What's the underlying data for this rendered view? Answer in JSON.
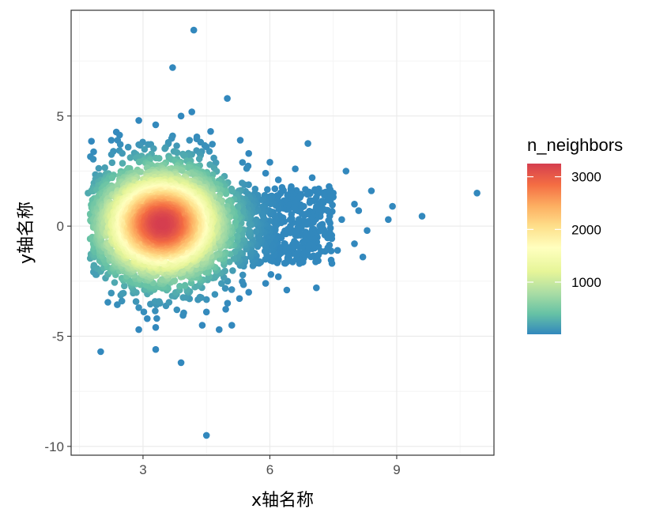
{
  "chart_data": {
    "type": "scatter",
    "title": "",
    "xlabel": "x轴名称",
    "ylabel": "y轴名称",
    "xlim": [
      1.3,
      11.3
    ],
    "ylim": [
      -10.4,
      9.8
    ],
    "x_ticks": [
      3,
      6,
      9
    ],
    "y_ticks": [
      5,
      0,
      -5,
      -10
    ],
    "x_tick_labels": [
      "3",
      "6",
      "9"
    ],
    "y_tick_labels": [
      "5",
      "0",
      "-5",
      "-10"
    ],
    "grid": true,
    "theme": "bw",
    "color_variable": "n_neighbors",
    "legend": {
      "title": "n_neighbors",
      "position": "right",
      "breaks": [
        3000,
        2000,
        1000
      ],
      "labels": [
        "3000",
        "2000",
        "1000"
      ],
      "range": [
        10,
        3250
      ],
      "palette": [
        "#3288bd",
        "#66c2a5",
        "#abdda4",
        "#e6f598",
        "#ffffbf",
        "#fee08b",
        "#fdae61",
        "#f46d43",
        "#d53e4f"
      ]
    },
    "point_color_stops": [
      {
        "value": 10,
        "color": "#3288bd"
      },
      {
        "value": 400,
        "color": "#66c2a5"
      },
      {
        "value": 800,
        "color": "#abdda4"
      },
      {
        "value": 1200,
        "color": "#e6f598"
      },
      {
        "value": 1650,
        "color": "#ffffbf"
      },
      {
        "value": 2050,
        "color": "#fee08b"
      },
      {
        "value": 2450,
        "color": "#fdae61"
      },
      {
        "value": 2850,
        "color": "#f46d43"
      },
      {
        "value": 3250,
        "color": "#d53e4f"
      }
    ],
    "core_cluster": {
      "center": [
        3.45,
        0.1
      ],
      "peak_density": 3250,
      "spread_x": 0.85,
      "spread_y": 1.4
    },
    "points": [
      [
        4.2,
        8.9
      ],
      [
        3.7,
        7.2
      ],
      [
        3.9,
        5.0
      ],
      [
        2.9,
        4.8
      ],
      [
        3.3,
        4.6
      ],
      [
        4.6,
        4.3
      ],
      [
        3.7,
        4.1
      ],
      [
        2.4,
        3.9
      ],
      [
        3.6,
        3.8
      ],
      [
        4.1,
        3.9
      ],
      [
        2.9,
        3.7
      ],
      [
        4.5,
        3.6
      ],
      [
        5.3,
        3.9
      ],
      [
        6.9,
        3.75
      ],
      [
        5.5,
        3.3
      ],
      [
        2.3,
        3.4
      ],
      [
        6.0,
        2.9
      ],
      [
        6.6,
        2.6
      ],
      [
        7.8,
        2.5
      ],
      [
        7.0,
        2.2
      ],
      [
        6.2,
        2.1
      ],
      [
        7.4,
        1.8
      ],
      [
        8.4,
        1.6
      ],
      [
        7.5,
        1.5
      ],
      [
        6.5,
        1.6
      ],
      [
        7.1,
        1.3
      ],
      [
        8.0,
        1.0
      ],
      [
        8.9,
        0.9
      ],
      [
        9.6,
        0.45
      ],
      [
        8.8,
        0.3
      ],
      [
        10.9,
        1.5
      ],
      [
        8.1,
        0.7
      ],
      [
        7.7,
        0.3
      ],
      [
        8.3,
        -0.2
      ],
      [
        7.3,
        -0.4
      ],
      [
        8.0,
        -0.8
      ],
      [
        6.9,
        -1.1
      ],
      [
        8.2,
        -1.4
      ],
      [
        7.6,
        -1.1
      ],
      [
        6.7,
        -1.7
      ],
      [
        6.2,
        -2.3
      ],
      [
        5.9,
        -2.6
      ],
      [
        6.4,
        -2.9
      ],
      [
        7.1,
        -2.8
      ],
      [
        5.5,
        -3.0
      ],
      [
        4.7,
        -3.1
      ],
      [
        4.1,
        -3.3
      ],
      [
        3.4,
        -3.5
      ],
      [
        2.9,
        -3.7
      ],
      [
        2.5,
        -3.4
      ],
      [
        4.5,
        -3.9
      ],
      [
        3.8,
        -3.8
      ],
      [
        5.0,
        -3.5
      ],
      [
        3.1,
        -4.2
      ],
      [
        4.4,
        -4.5
      ],
      [
        4.8,
        -4.7
      ],
      [
        3.3,
        -4.6
      ],
      [
        5.1,
        -4.5
      ],
      [
        2.9,
        -4.7
      ],
      [
        3.3,
        -5.6
      ],
      [
        2.0,
        -5.7
      ],
      [
        3.9,
        -6.2
      ],
      [
        4.5,
        -9.5
      ],
      [
        1.9,
        -2.2
      ],
      [
        1.7,
        1.5
      ],
      [
        1.8,
        -0.5
      ],
      [
        5.8,
        1.2
      ],
      [
        6.1,
        0.5
      ],
      [
        6.6,
        -0.4
      ],
      [
        6.3,
        -1.0
      ],
      [
        5.6,
        -1.8
      ],
      [
        5.9,
        2.4
      ],
      [
        6.8,
        0.9
      ],
      [
        7.0,
        -0.2
      ]
    ]
  }
}
